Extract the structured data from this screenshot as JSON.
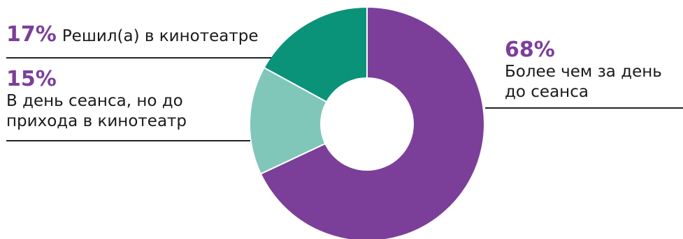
{
  "chart_data": {
    "type": "pie",
    "donut": true,
    "start": "top",
    "direction": "clockwise",
    "slices": [
      {
        "value": 68,
        "percent_label": "68%",
        "lines": [
          "Более чем за день",
          "до сеанса"
        ],
        "color": "#7B3F99"
      },
      {
        "value": 15,
        "percent_label": "15%",
        "lines": [
          "В день сеанса, но до",
          "прихода в кинотеатр"
        ],
        "color": "#80C7BA"
      },
      {
        "value": 17,
        "percent_label": "17%",
        "lines": [
          "Решил(а) в кинотеатре"
        ],
        "color": "#0B9379"
      }
    ]
  }
}
